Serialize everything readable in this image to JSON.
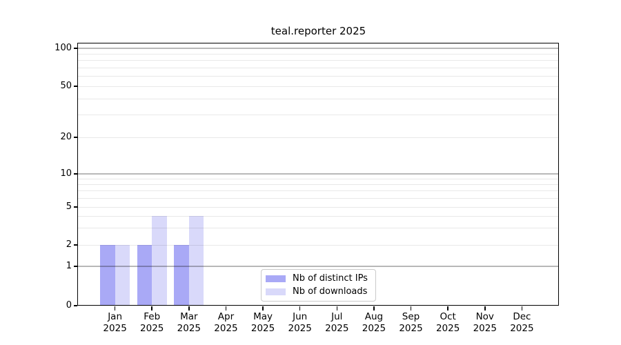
{
  "colors": {
    "bar_distinct_ips": "#a9a9f6",
    "bar_downloads": "#d9d9fa",
    "major_grid": "#b8b8b8",
    "minor_grid": "#e8e8e8",
    "axis": "#000000",
    "legend_border": "#c9c9c9",
    "background": "#ffffff"
  },
  "chart_data": {
    "type": "bar",
    "title": "teal.reporter 2025",
    "categories": [
      "Jan",
      "Feb",
      "Mar",
      "Apr",
      "May",
      "Jun",
      "Jul",
      "Aug",
      "Sep",
      "Oct",
      "Nov",
      "Dec"
    ],
    "year_label": "2025",
    "series": [
      {
        "name": "Nb of distinct IPs",
        "color": "#a9a9f6",
        "values": [
          2,
          2,
          2,
          0,
          0,
          0,
          0,
          0,
          0,
          0,
          0,
          0
        ]
      },
      {
        "name": "Nb of downloads",
        "color": "#d9d9fa",
        "values": [
          2,
          4,
          4,
          0,
          0,
          0,
          0,
          0,
          0,
          0,
          0,
          0
        ]
      }
    ],
    "xlabel": "",
    "ylabel": "",
    "y_axis": {
      "scale": "log-like",
      "range": [
        0,
        100
      ],
      "tick_values": [
        0,
        1,
        2,
        5,
        10,
        20,
        50,
        100
      ],
      "tick_labels": [
        "0",
        "1",
        "2",
        "5",
        "10",
        "20",
        "50",
        "100"
      ],
      "major_gridlines": [
        1,
        10,
        100
      ],
      "minor_gridlines": [
        2,
        3,
        4,
        5,
        6,
        7,
        8,
        9,
        20,
        30,
        40,
        50,
        60,
        70,
        80,
        90
      ]
    },
    "grid": true,
    "legend_position": "lower center"
  }
}
